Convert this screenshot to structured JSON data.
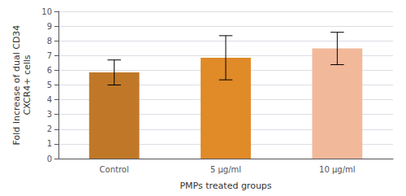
{
  "chart_data": {
    "type": "bar",
    "categories": [
      "Control",
      "5 μg/ml",
      "10 μg/ml"
    ],
    "values": [
      5.85,
      6.85,
      7.48
    ],
    "errors": [
      0.85,
      1.5,
      1.1
    ],
    "colors": [
      "#C07828",
      "#E08A28",
      "#F2B89A"
    ],
    "xlabel": "PMPs treated groups",
    "ylabel": "Fold Increase of dual CD34\nCXCR4+ cells",
    "ylim": [
      0,
      10
    ],
    "yticks": [
      0,
      1,
      2,
      3,
      4,
      5,
      6,
      7,
      8,
      9,
      10
    ],
    "grid": true
  }
}
